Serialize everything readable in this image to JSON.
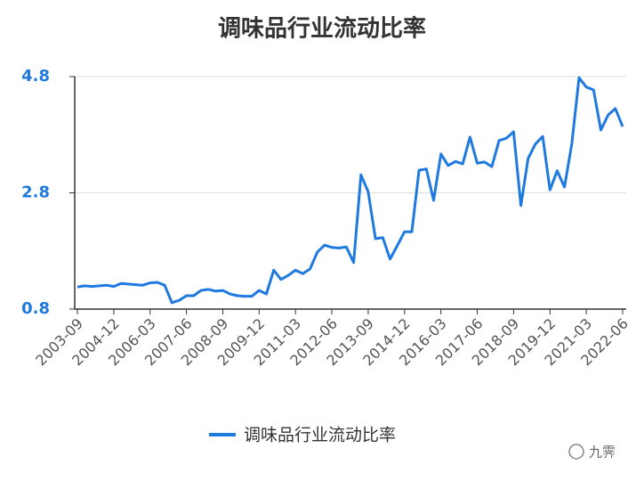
{
  "chart_data": {
    "type": "line",
    "title": "调味品行业流动比率",
    "categories": [
      "2003-09",
      null,
      null,
      null,
      null,
      "2004-12",
      null,
      null,
      null,
      null,
      "2006-03",
      null,
      null,
      null,
      null,
      "2007-06",
      null,
      null,
      null,
      null,
      "2008-09",
      null,
      null,
      null,
      null,
      "2009-12",
      null,
      null,
      null,
      null,
      "2011-03",
      null,
      null,
      null,
      null,
      "2012-06",
      null,
      null,
      null,
      null,
      "2013-09",
      null,
      null,
      null,
      null,
      "2014-12",
      null,
      null,
      null,
      null,
      "2016-03",
      null,
      null,
      null,
      null,
      "2017-06",
      null,
      null,
      null,
      null,
      "2018-09",
      null,
      null,
      null,
      null,
      "2019-12",
      null,
      null,
      null,
      null,
      "2021-03",
      null,
      null,
      null,
      null,
      "2022-06"
    ],
    "series": [
      {
        "name": "调味品行业流动比率",
        "color": "#1f7ae0",
        "values": [
          1.18,
          1.2,
          1.19,
          1.2,
          1.21,
          1.19,
          1.24,
          1.23,
          1.22,
          1.21,
          1.25,
          1.26,
          1.21,
          0.91,
          0.95,
          1.03,
          1.03,
          1.12,
          1.14,
          1.11,
          1.12,
          1.06,
          1.03,
          1.02,
          1.02,
          1.12,
          1.06,
          1.47,
          1.31,
          1.38,
          1.47,
          1.41,
          1.49,
          1.78,
          1.9,
          1.86,
          1.85,
          1.87,
          1.6,
          3.11,
          2.82,
          2.01,
          2.03,
          1.66,
          1.89,
          2.13,
          2.13,
          3.19,
          3.21,
          2.67,
          3.47,
          3.27,
          3.34,
          3.3,
          3.76,
          3.31,
          3.33,
          3.25,
          3.7,
          3.74,
          3.85,
          2.58,
          3.39,
          3.64,
          3.77,
          2.85,
          3.18,
          2.9,
          3.64,
          4.78,
          4.62,
          4.57,
          3.88,
          4.14,
          4.25,
          3.94
        ]
      }
    ],
    "ylim": [
      0.8,
      4.8
    ],
    "yticks": [
      0.8,
      2.8,
      4.8
    ],
    "grid": true,
    "legend": "bottom",
    "watermark": "九霁"
  }
}
